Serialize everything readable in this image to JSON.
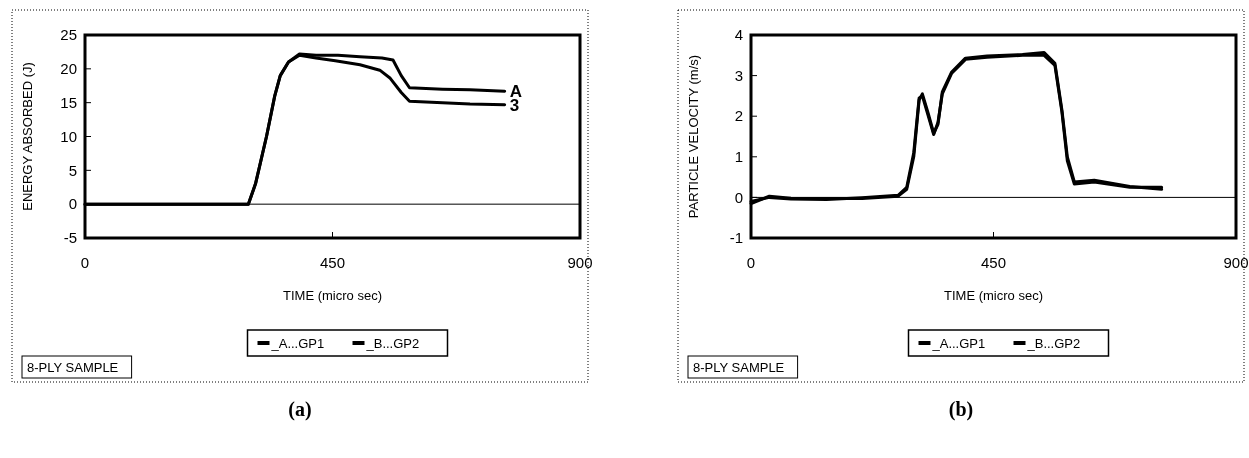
{
  "chart_data": [
    {
      "type": "line",
      "title": "(a)",
      "xlabel": "TIME (micro sec)",
      "ylabel": "ENERGY ABSORBED (J)",
      "xlim": [
        0,
        900
      ],
      "xticks": [
        0,
        450,
        900
      ],
      "ylim": [
        -5,
        25
      ],
      "yticks": [
        -5,
        0,
        5,
        10,
        15,
        20,
        25
      ],
      "legend": "bottom",
      "ref_lines": [
        {
          "axis": "y",
          "value": 0
        }
      ],
      "annotations": [
        "8-PLY SAMPLE",
        {
          "text": "A",
          "x": 763,
          "y": 16.7
        },
        {
          "text": "3",
          "x": 763,
          "y": 14.7
        }
      ],
      "series": [
        {
          "name": "_A...GP1",
          "color": "#000000",
          "x": [
            0,
            297,
            310,
            330,
            345,
            355,
            370,
            390,
            420,
            460,
            500,
            540,
            560,
            575,
            590,
            650,
            700,
            763
          ],
          "values": [
            0,
            0,
            3,
            10,
            16,
            19,
            21,
            22.2,
            22,
            22,
            21.8,
            21.6,
            21.3,
            19,
            17.2,
            17,
            16.9,
            16.7
          ]
        },
        {
          "name": "_B...GP2",
          "color": "#000000",
          "x": [
            0,
            297,
            310,
            330,
            345,
            355,
            370,
            390,
            420,
            455,
            500,
            536,
            555,
            575,
            590,
            650,
            700,
            763
          ],
          "values": [
            0,
            0,
            3,
            10,
            16,
            19,
            21,
            22,
            21.6,
            21.2,
            20.6,
            19.8,
            18.6,
            16.5,
            15.2,
            15,
            14.8,
            14.7
          ]
        }
      ]
    },
    {
      "type": "line",
      "title": "(b)",
      "xlabel": "TIME (micro sec)",
      "ylabel": "PARTICLE VELOCITY (m/s)",
      "xlim": [
        0,
        900
      ],
      "xticks": [
        0,
        450,
        900
      ],
      "ylim": [
        -1,
        4
      ],
      "yticks": [
        -1,
        0,
        1,
        2,
        3,
        4
      ],
      "legend": "bottom",
      "ref_lines": [
        {
          "axis": "y",
          "value": 0
        }
      ],
      "annotations": [
        "8-PLY SAMPLE"
      ],
      "series": [
        {
          "name": "_A...GP1",
          "color": "#000000",
          "x": [
            0,
            34,
            74,
            140,
            206,
            273,
            289,
            302,
            312,
            318,
            329,
            339,
            347,
            355,
            372,
            398,
            438,
            504,
            544,
            564,
            577,
            587,
            600,
            637,
            703,
            762
          ],
          "values": [
            -0.15,
            0.03,
            -0.02,
            -0.03,
            -0.03,
            0.03,
            0.2,
            1.0,
            2.4,
            2.55,
            2.06,
            1.58,
            1.8,
            2.6,
            3.08,
            3.43,
            3.48,
            3.52,
            3.57,
            3.3,
            2.15,
            1.0,
            0.38,
            0.42,
            0.27,
            0.2
          ]
        },
        {
          "name": "_B...GP2",
          "color": "#000000",
          "x": [
            0,
            34,
            74,
            140,
            206,
            273,
            289,
            302,
            312,
            318,
            329,
            339,
            347,
            355,
            372,
            398,
            438,
            504,
            544,
            564,
            577,
            587,
            600,
            637,
            703,
            762
          ],
          "values": [
            -0.1,
            0.0,
            -0.04,
            -0.05,
            -0.01,
            0.05,
            0.25,
            1.1,
            2.45,
            2.5,
            2.0,
            1.55,
            1.85,
            2.55,
            3.05,
            3.4,
            3.45,
            3.5,
            3.5,
            3.25,
            2.1,
            0.9,
            0.33,
            0.38,
            0.25,
            0.25
          ]
        }
      ]
    }
  ]
}
